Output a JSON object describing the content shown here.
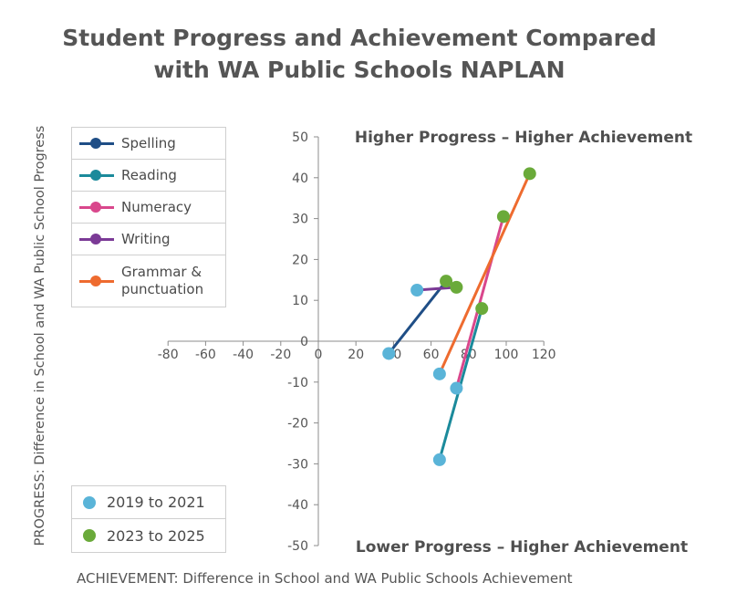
{
  "title_line1": "Student Progress and Achievement Compared",
  "title_line2": "with WA Public Schools NAPLAN",
  "chart_data": {
    "type": "scatter",
    "xlabel": "ACHIEVEMENT: Difference in School and WA Public Schools Achievement",
    "ylabel": "PROGRESS: Difference in School and WA Public School Progress",
    "xlim": [
      -80,
      120
    ],
    "ylim": [
      -50,
      50
    ],
    "x_ticks": [
      "-80",
      "-60",
      "-40",
      "-20",
      "0",
      "20",
      "40",
      "60",
      "80",
      "100",
      "120"
    ],
    "y_ticks": [
      "50",
      "40",
      "30",
      "20",
      "10",
      "0",
      "-10",
      "-20",
      "-30",
      "-40",
      "-50"
    ],
    "quadrant_labels": {
      "top": "Higher Progress – Higher Achievement",
      "bottom": "Lower Progress – Higher Achievement"
    },
    "period_legend": [
      {
        "name": "2019 to 2021",
        "color": "#5ab4d8"
      },
      {
        "name": "2023 to 2025",
        "color": "#6aaa3a"
      }
    ],
    "series": [
      {
        "name": "Spelling",
        "color": "#1f4e86",
        "label_lines": [
          "Spelling"
        ],
        "from": [
          37.5,
          -3
        ],
        "to": [
          68,
          14.7
        ]
      },
      {
        "name": "Reading",
        "color": "#1b8a9b",
        "label_lines": [
          "Reading"
        ],
        "from": [
          64.5,
          -29
        ],
        "to": [
          87,
          8
        ]
      },
      {
        "name": "Numeracy",
        "color": "#d9478c",
        "label_lines": [
          "Numeracy"
        ],
        "from": [
          73.5,
          -11.5
        ],
        "to": [
          98.5,
          30.5
        ]
      },
      {
        "name": "Writing",
        "color": "#7b3a96",
        "label_lines": [
          "Writing"
        ],
        "from": [
          52.5,
          12.5
        ],
        "to": [
          73.5,
          13.2
        ]
      },
      {
        "name": "Grammar & punctuation",
        "color": "#ee6b2f",
        "label_lines": [
          "Grammar &",
          "punctuation"
        ],
        "from": [
          64.5,
          -8
        ],
        "to": [
          112.5,
          41
        ]
      }
    ]
  }
}
